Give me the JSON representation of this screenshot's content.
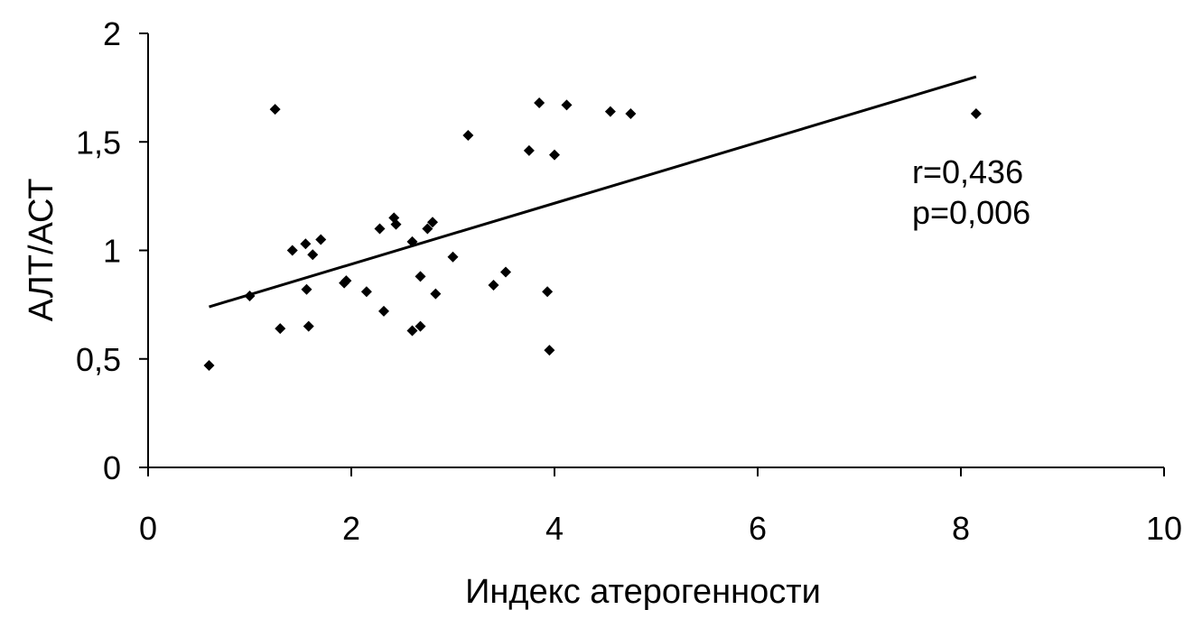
{
  "chart_data": {
    "type": "scatter",
    "title": "",
    "xlabel": "Индекс атерогенности",
    "ylabel": "АЛТ/АСТ",
    "xlim": [
      0,
      10
    ],
    "ylim": [
      0,
      2
    ],
    "x_ticks": [
      0,
      2,
      4,
      6,
      8,
      10
    ],
    "x_tick_labels": [
      "0",
      "2",
      "4",
      "6",
      "8",
      "10"
    ],
    "y_ticks": [
      0,
      0.5,
      1,
      1.5,
      2
    ],
    "y_tick_labels": [
      "0",
      "0,5",
      "1",
      "1,5",
      "2"
    ],
    "grid": false,
    "legend": "none",
    "points": [
      [
        0.6,
        0.47
      ],
      [
        1.0,
        0.79
      ],
      [
        1.25,
        1.65
      ],
      [
        1.3,
        0.64
      ],
      [
        1.42,
        1.0
      ],
      [
        1.55,
        1.03
      ],
      [
        1.56,
        0.82
      ],
      [
        1.58,
        0.65
      ],
      [
        1.62,
        0.98
      ],
      [
        1.7,
        1.05
      ],
      [
        1.93,
        0.85
      ],
      [
        1.95,
        0.86
      ],
      [
        2.15,
        0.81
      ],
      [
        2.28,
        1.1
      ],
      [
        2.32,
        0.72
      ],
      [
        2.42,
        1.15
      ],
      [
        2.44,
        1.12
      ],
      [
        2.6,
        1.04
      ],
      [
        2.6,
        0.63
      ],
      [
        2.68,
        0.65
      ],
      [
        2.68,
        0.88
      ],
      [
        2.75,
        1.1
      ],
      [
        2.8,
        1.13
      ],
      [
        2.83,
        0.8
      ],
      [
        3.0,
        0.97
      ],
      [
        3.15,
        1.53
      ],
      [
        3.4,
        0.84
      ],
      [
        3.52,
        0.9
      ],
      [
        3.75,
        1.46
      ],
      [
        3.85,
        1.68
      ],
      [
        3.93,
        0.81
      ],
      [
        3.95,
        0.54
      ],
      [
        4.0,
        1.44
      ],
      [
        4.12,
        1.67
      ],
      [
        4.55,
        1.64
      ],
      [
        4.75,
        1.63
      ],
      [
        8.15,
        1.63
      ]
    ],
    "trendline": {
      "x": [
        0.6,
        8.15
      ],
      "y": [
        0.74,
        1.8
      ]
    },
    "annotations": [
      "r=0,436",
      "p=0,006"
    ],
    "colors": {
      "points": "#000000",
      "trendline": "#000000"
    }
  }
}
